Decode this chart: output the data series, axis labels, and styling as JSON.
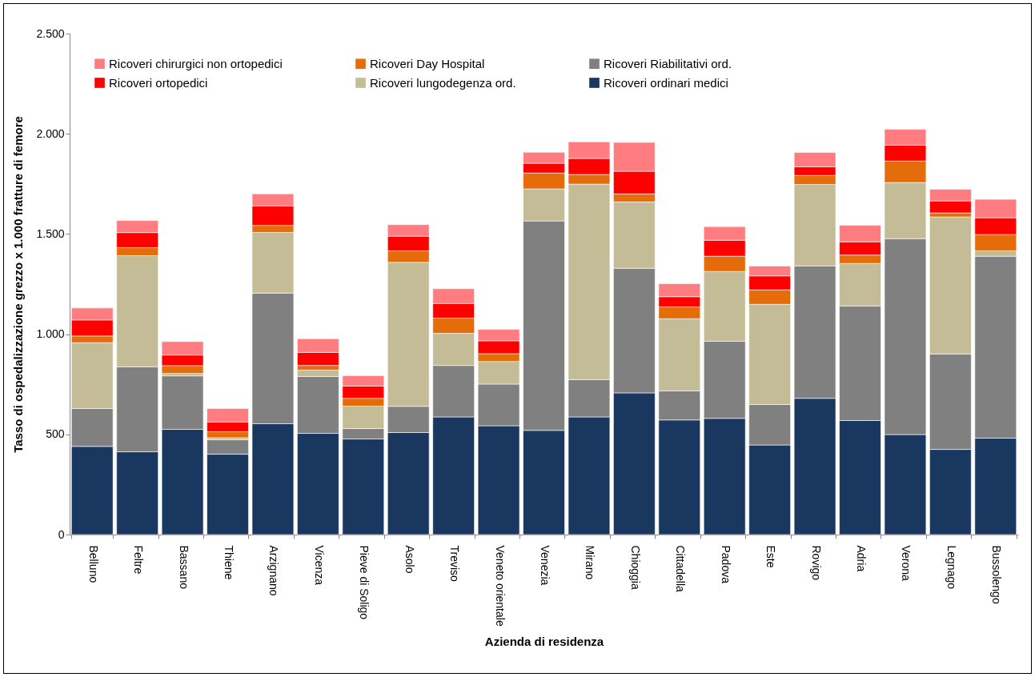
{
  "chart_data": {
    "type": "bar",
    "stacked": true,
    "xlabel": "Azienda di residenza",
    "ylabel": "Tasso di ospedalizzazione grezzo x 1.000 fratture di femore",
    "categories": [
      "Belluno",
      "Feltre",
      "Bassano",
      "Thiene",
      "Arzignano",
      "Vicenza",
      "Pieve di Soligo",
      "Asolo",
      "Treviso",
      "Veneto orientale",
      "Venezia",
      "Mirano",
      "Chioggia",
      "Cittadella",
      "Padova",
      "Este",
      "Rovigo",
      "Adria",
      "Verona",
      "Legnago",
      "Bussolengo"
    ],
    "series": [
      {
        "name": "Ricoveri ordinari medici",
        "color": "#1a3760",
        "values": [
          440,
          413,
          525,
          401,
          553,
          505,
          477,
          509,
          587,
          543,
          520,
          587,
          707,
          572,
          580,
          447,
          680,
          569,
          499,
          425,
          481
        ]
      },
      {
        "name": "Ricoveri Riabilitativi ord.",
        "color": "#808080",
        "values": [
          189,
          424,
          267,
          72,
          652,
          284,
          52,
          131,
          257,
          208,
          1045,
          186,
          622,
          145,
          385,
          202,
          661,
          572,
          978,
          476,
          908
        ]
      },
      {
        "name": "Ricoveri lungodegenza ord.",
        "color": "#c4bc96",
        "values": [
          328,
          555,
          12,
          10,
          303,
          32,
          112,
          719,
          160,
          113,
          160,
          976,
          331,
          360,
          348,
          500,
          406,
          212,
          280,
          684,
          27
        ]
      },
      {
        "name": "Ricoveri Day Hospital",
        "color": "#e46c0a",
        "values": [
          34,
          40,
          39,
          30,
          35,
          23,
          39,
          57,
          76,
          39,
          79,
          48,
          40,
          59,
          76,
          72,
          45,
          42,
          107,
          20,
          81
        ]
      },
      {
        "name": "Ricoveri ortopedici",
        "color": "#ff0000",
        "values": [
          80,
          75,
          53,
          48,
          97,
          65,
          61,
          73,
          73,
          64,
          49,
          80,
          113,
          51,
          80,
          70,
          43,
          66,
          79,
          60,
          84
        ]
      },
      {
        "name": "Ricoveri chirurgici non ortopedici",
        "color": "#ff7c80",
        "values": [
          60,
          60,
          67,
          68,
          60,
          68,
          52,
          58,
          74,
          57,
          55,
          83,
          144,
          65,
          68,
          49,
          72,
          83,
          80,
          58,
          92
        ]
      }
    ],
    "ylim": [
      0,
      2500
    ],
    "yticks": [
      {
        "value": 0,
        "label": "0"
      },
      {
        "value": 500,
        "label": "500"
      },
      {
        "value": 1000,
        "label": "1.000"
      },
      {
        "value": 1500,
        "label": "1.500"
      },
      {
        "value": 2000,
        "label": "2.000"
      },
      {
        "value": 2500,
        "label": "2.500"
      }
    ],
    "grid": false,
    "legend": "top left"
  }
}
